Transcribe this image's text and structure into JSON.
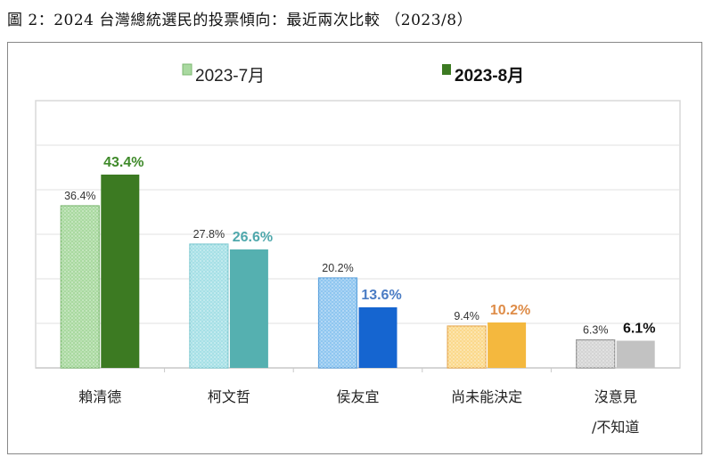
{
  "chart_data": {
    "type": "bar",
    "title": "圖 2：2024 台灣總統選民的投票傾向：最近兩次比較 （2023/8）",
    "categories": [
      [
        "賴清德"
      ],
      [
        "柯文哲"
      ],
      [
        "侯友宜"
      ],
      [
        "尚未能決定"
      ],
      [
        "沒意見",
        "/不知道"
      ]
    ],
    "series": [
      {
        "name": "2023-7月",
        "values": [
          36.4,
          27.8,
          20.2,
          9.4,
          6.3
        ],
        "labels": [
          "36.4%",
          "27.8%",
          "20.2%",
          "9.4%",
          "6.3%"
        ]
      },
      {
        "name": "2023-8月",
        "values": [
          43.4,
          26.6,
          13.6,
          10.2,
          6.1
        ],
        "labels": [
          "43.4%",
          "26.6%",
          "13.6%",
          "10.2%",
          "6.1%"
        ]
      }
    ],
    "ylim": [
      0,
      60
    ],
    "grid_step": 10,
    "grid": true,
    "legend": "top",
    "xlabel": "",
    "ylabel": ""
  },
  "colors": {
    "light": [
      "#a9d9a0",
      "#a6e0e6",
      "#8fc6f0",
      "#fbd98c",
      "#d4d4d4"
    ],
    "light_border": [
      "#7cb870",
      "#7cc8d0",
      "#5aa0dc",
      "#e6a850",
      "#909090"
    ],
    "dark": [
      "#3c7a22",
      "#55b0b0",
      "#1565d0",
      "#f4b83e",
      "#c2c2c2"
    ],
    "dark_label": [
      "#3f8a2a",
      "#4fa8ac",
      "#4a7cc4",
      "#de8c48",
      "#111111"
    ],
    "legend_light": "#a9d9a0",
    "legend_dark": "#3c7a22"
  }
}
